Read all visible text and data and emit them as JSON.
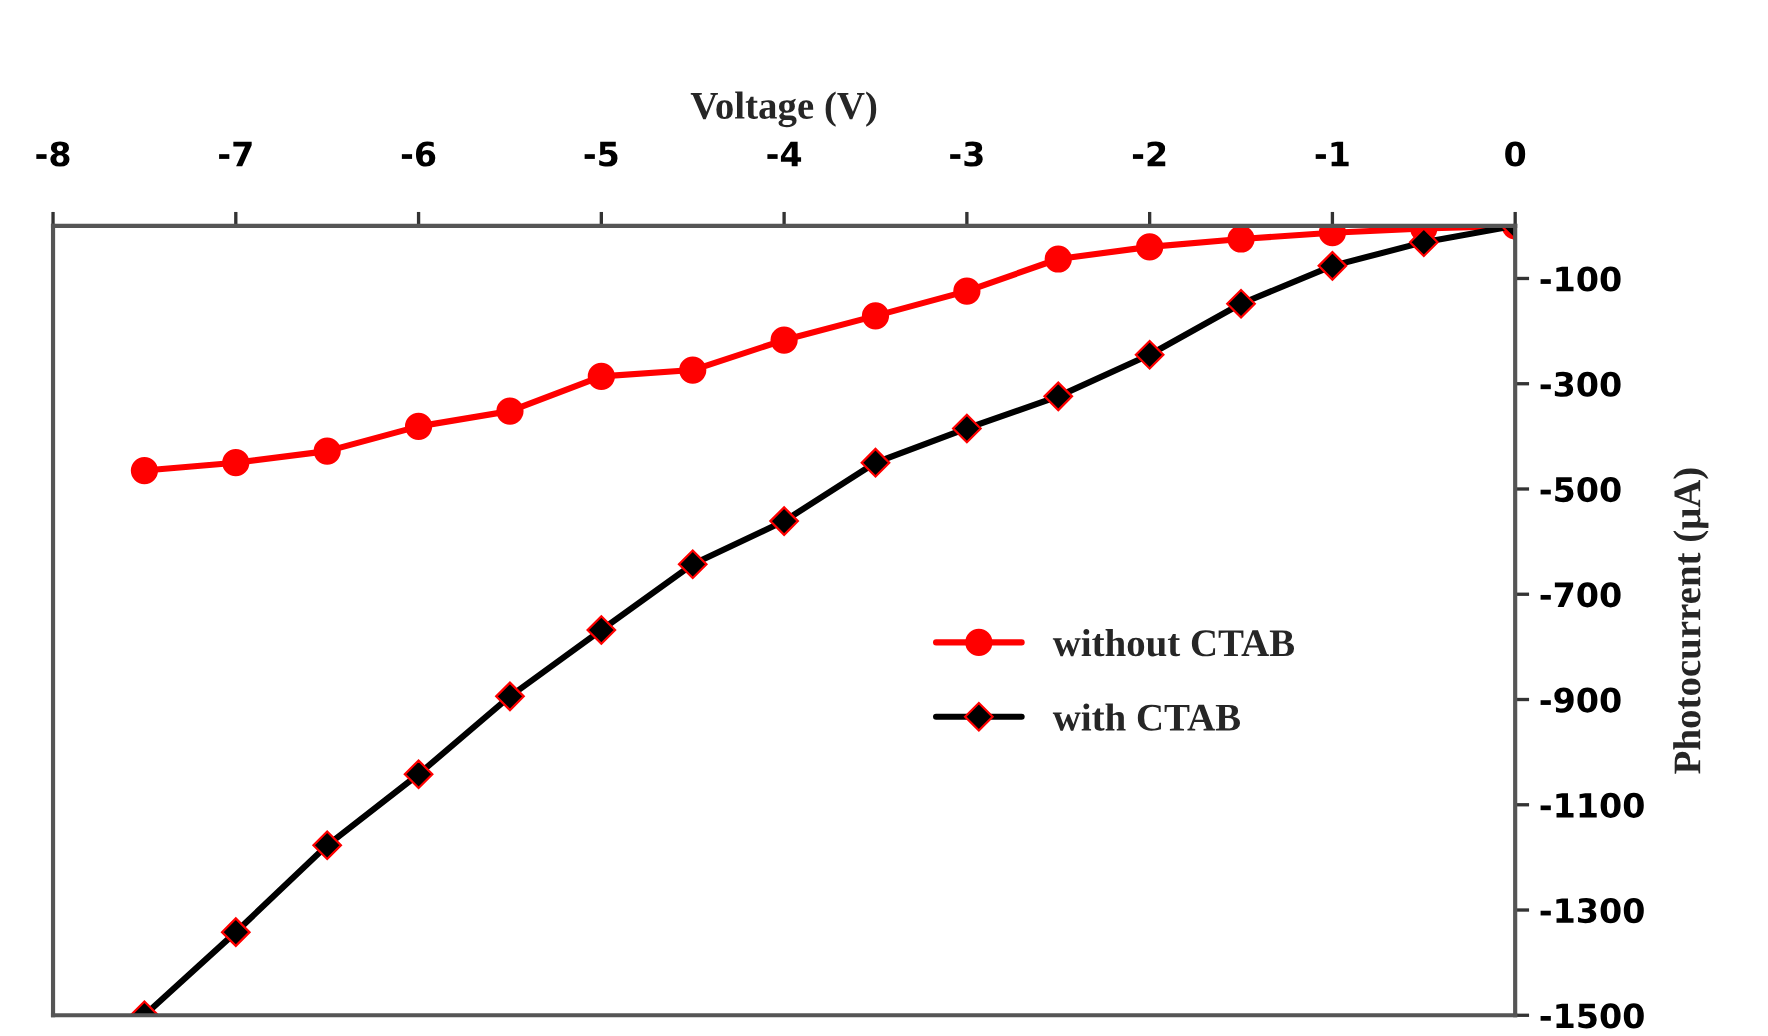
{
  "chart_data": {
    "type": "line",
    "xlabel": "Voltage (V)",
    "ylabel": "Photocurrent (μA)",
    "x": [
      -7.5,
      -7,
      -6.5,
      -6,
      -5.5,
      -5,
      -4.5,
      -4,
      -3.5,
      -3,
      -2.5,
      -2,
      -1.5,
      -1,
      -0.5,
      0
    ],
    "series": [
      {
        "name": "without CTAB",
        "color": "#ff0000",
        "marker": "circle",
        "values": [
          -465,
          -450,
          -428,
          -381,
          -352,
          -286,
          -274,
          -217,
          -171,
          -124,
          -63,
          -40,
          -25,
          -13,
          -5,
          0
        ]
      },
      {
        "name": "with CTAB",
        "color": "#000000",
        "marker": "diamond",
        "values": [
          -1500,
          -1342,
          -1177,
          -1042,
          -894,
          -768,
          -643,
          -561,
          -450,
          -385,
          -324,
          -245,
          -148,
          -76,
          -31,
          0
        ]
      }
    ],
    "xlim": [
      -8,
      0
    ],
    "xticks": [
      -8,
      -7,
      -6,
      -5,
      -4,
      -3,
      -2,
      -1,
      0
    ],
    "ylim": [
      -1500,
      0
    ],
    "yticks": [
      -100,
      -300,
      -500,
      -700,
      -900,
      -1100,
      -1300,
      -1500
    ],
    "grid": false,
    "legend": "center right",
    "line_style": "solid"
  }
}
